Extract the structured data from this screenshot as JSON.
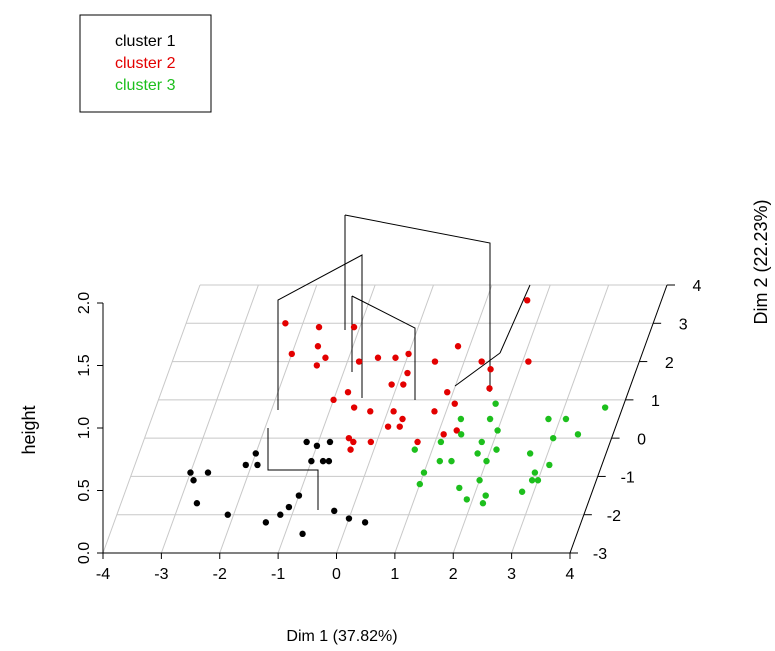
{
  "chart_data": {
    "type": "scatter3d",
    "xlabel": "Dim 1 (37.82%)",
    "ylabel": "Dim 2 (22.23%)",
    "zlabel": "height",
    "xlim": [
      -4,
      4
    ],
    "xticks": [
      -4,
      -3,
      -2,
      -1,
      0,
      1,
      2,
      3,
      4
    ],
    "ylim": [
      -3,
      4
    ],
    "yticks": [
      -3,
      -2,
      -1,
      0,
      1,
      2,
      3,
      4
    ],
    "zlim": [
      0,
      2
    ],
    "zticks": [
      {
        "value": 0,
        "label": "0.0"
      },
      0.5,
      {
        "value": 1,
        "label": "1.0"
      },
      1.5,
      {
        "value": 2,
        "label": "2.0"
      }
    ],
    "grid": true,
    "legend": "top-left",
    "series": [
      {
        "name": "cluster 1",
        "color": "#000000",
        "x": [
          -3.0,
          -2.7,
          -2.9,
          -2.7,
          -2.1,
          -2.0,
          -1.9,
          -2.1,
          -1.4,
          -1.2,
          -1.0,
          -1.2,
          -1.0,
          -0.8,
          -0.8,
          -1.0,
          -0.7,
          -0.7,
          -0.3,
          0.0,
          0.3,
          -1.1
        ],
        "y": [
          -0.9,
          -0.9,
          -1.1,
          -1.7,
          -2.0,
          -0.4,
          -0.7,
          -0.7,
          -2.2,
          -2.0,
          -1.5,
          -0.1,
          -0.2,
          -0.1,
          -0.6,
          -0.6,
          -0.6,
          -2.5,
          -1.9,
          -2.1,
          -2.2,
          -1.8
        ]
      },
      {
        "name": "cluster 2",
        "color": "#e30000",
        "x": [
          -2.3,
          -2.0,
          -1.7,
          -1.6,
          -1.1,
          -1.5,
          -1.4,
          -0.8,
          -1.0,
          -0.5,
          -0.8,
          -0.6,
          -0.3,
          -0.4,
          -0.4,
          -0.5,
          -0.1,
          0.1,
          0.1,
          -0.1,
          -0.2,
          0.1,
          0.0,
          0.1,
          0.3,
          0.3,
          0.7,
          0.8,
          1.1,
          0.5,
          0.9,
          1.1,
          1.3,
          0.8,
          1.3,
          1.5,
          1.6,
          1.7,
          2.1
        ],
        "y": [
          3.0,
          2.2,
          2.9,
          2.4,
          2.9,
          1.9,
          2.1,
          1.2,
          1.0,
          2.1,
          2.0,
          0.8,
          0.7,
          -0.1,
          -0.3,
          0.0,
          -0.1,
          0.3,
          0.7,
          1.4,
          2.1,
          1.4,
          2.2,
          1.7,
          0.3,
          0.5,
          -0.1,
          0.7,
          0.1,
          2.0,
          1.2,
          0.9,
          0.2,
          2.4,
          2.0,
          1.8,
          1.3,
          3.6,
          2.0
        ]
      },
      {
        "name": "cluster 3",
        "color": "#1dbf1d",
        "x": [
          0.7,
          1.0,
          1.0,
          1.2,
          1.1,
          1.3,
          1.4,
          1.4,
          1.7,
          1.9,
          2.2,
          2.0,
          1.8,
          1.8,
          1.8,
          2.1,
          2.0,
          2.0,
          1.8,
          2.2,
          2.8,
          2.9,
          2.7,
          2.9,
          3.0,
          3.1,
          2.8,
          3.0,
          3.1,
          3.4,
          3.7
        ],
        "y": [
          -0.3,
          -0.9,
          -1.2,
          -0.6,
          -0.1,
          0.5,
          0.1,
          -0.6,
          -1.3,
          -1.6,
          -1.7,
          -1.1,
          -0.4,
          -0.1,
          0.5,
          -0.3,
          -0.6,
          0.2,
          0.9,
          -1.5,
          -1.4,
          -1.1,
          -0.4,
          -0.9,
          -1.1,
          -0.7,
          0.5,
          0.0,
          0.5,
          0.1,
          0.8
        ]
      }
    ]
  }
}
